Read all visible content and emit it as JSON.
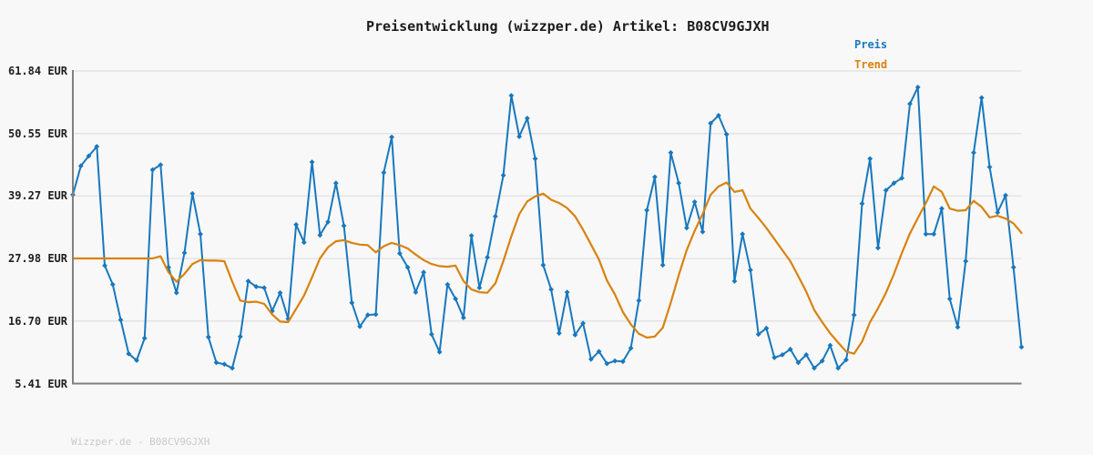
{
  "title": "Preisentwicklung (wizzper.de) Artikel: B08CV9GJXH",
  "watermark": "Wizzper.de - B08CV9GJXH",
  "legend": {
    "preis_label": "Preis",
    "trend_label": "Trend"
  },
  "colors": {
    "preis": "#1878bd",
    "trend": "#d9820e",
    "axis": "#808080",
    "grid": "#e4e4e4",
    "background": "#f8f8f8",
    "title_text": "#1c1c1c",
    "tick_text": "#1e1e1e",
    "watermark_text": "#c9c9c9"
  },
  "chart_data": {
    "type": "line",
    "title": "Preisentwicklung (wizzper.de) Artikel: B08CV9GJXH",
    "unit": "EUR",
    "ylim": [
      5.41,
      61.84
    ],
    "grid": true,
    "x_axis_labels_visible": false,
    "legend_position": "top-right",
    "y_ticks": [
      {
        "label": "61.84 EUR",
        "value": 61.84
      },
      {
        "label": "50.55 EUR",
        "value": 50.55
      },
      {
        "label": "39.27 EUR",
        "value": 39.27
      },
      {
        "label": "27.98 EUR",
        "value": 27.98
      },
      {
        "label": "16.70 EUR",
        "value": 16.7
      },
      {
        "label": "5.41 EUR",
        "value": 5.41
      }
    ],
    "series": [
      {
        "name": "Preis",
        "color": "#1878bd",
        "marker": "diamond",
        "line_width": 2,
        "values": [
          39.5,
          44.7,
          46.5,
          48.2,
          26.7,
          23.3,
          16.9,
          10.8,
          9.6,
          13.6,
          44.0,
          44.9,
          26.4,
          21.8,
          29.0,
          39.7,
          32.4,
          13.8,
          9.2,
          8.9,
          8.2,
          13.9,
          23.9,
          22.9,
          22.7,
          18.5,
          21.8,
          17.1,
          34.1,
          30.9,
          45.4,
          32.2,
          34.6,
          41.6,
          33.9,
          20.0,
          15.7,
          17.8,
          17.9,
          43.5,
          49.9,
          28.9,
          26.4,
          21.9,
          25.5,
          14.3,
          11.1,
          23.3,
          20.7,
          17.3,
          32.1,
          22.7,
          28.2,
          35.6,
          43.0,
          57.4,
          50.0,
          53.3,
          46.0,
          26.8,
          22.4,
          14.5,
          21.9,
          14.2,
          16.3,
          9.8,
          11.2,
          9.0,
          9.5,
          9.4,
          11.8,
          20.4,
          36.7,
          42.7,
          26.8,
          47.1,
          41.6,
          33.5,
          38.2,
          32.8,
          52.4,
          53.8,
          50.4,
          23.9,
          32.4,
          25.9,
          14.3,
          15.4,
          10.1,
          10.6,
          11.6,
          9.2,
          10.6,
          8.2,
          9.5,
          12.3,
          8.2,
          9.7,
          17.8,
          37.9,
          46.0,
          29.9,
          40.3,
          41.6,
          42.5,
          55.9,
          58.9,
          32.4,
          32.4,
          37.0,
          20.7,
          15.6,
          27.5,
          47.1,
          57.0,
          44.5,
          36.3,
          39.4,
          26.4,
          12.0
        ]
      },
      {
        "name": "Trend",
        "color": "#d9820e",
        "marker": "none",
        "line_width": 2.2,
        "values": [
          28.0,
          28.0,
          28.0,
          28.0,
          28.0,
          28.0,
          28.0,
          28.0,
          28.0,
          28.0,
          28.0,
          28.4,
          25.5,
          23.8,
          25.2,
          27.0,
          27.7,
          27.6,
          27.6,
          27.5,
          23.8,
          20.4,
          20.1,
          20.2,
          19.8,
          17.9,
          16.6,
          16.5,
          18.9,
          21.3,
          24.6,
          28.0,
          30.0,
          31.1,
          31.3,
          30.8,
          30.5,
          30.4,
          29.1,
          30.2,
          30.8,
          30.4,
          29.8,
          28.7,
          27.7,
          27.0,
          26.6,
          26.5,
          26.7,
          23.9,
          22.4,
          21.9,
          21.8,
          23.5,
          27.5,
          32.0,
          36.0,
          38.3,
          39.2,
          39.7,
          38.6,
          38.0,
          37.1,
          35.6,
          33.2,
          30.5,
          27.8,
          24.0,
          21.5,
          18.3,
          16.1,
          14.4,
          13.7,
          13.9,
          15.5,
          20.0,
          25.0,
          29.5,
          33.0,
          36.0,
          39.5,
          41.0,
          41.7,
          40.0,
          40.3,
          37.0,
          35.3,
          33.5,
          31.5,
          29.5,
          27.5,
          24.8,
          22.0,
          18.7,
          16.5,
          14.5,
          12.8,
          11.2,
          10.8,
          13.0,
          16.5,
          19.0,
          21.8,
          25.2,
          29.0,
          32.5,
          35.3,
          38.0,
          41.0,
          40.0,
          37.0,
          36.6,
          36.7,
          38.4,
          37.3,
          35.4,
          35.7,
          35.2,
          34.3,
          32.6
        ]
      }
    ]
  }
}
